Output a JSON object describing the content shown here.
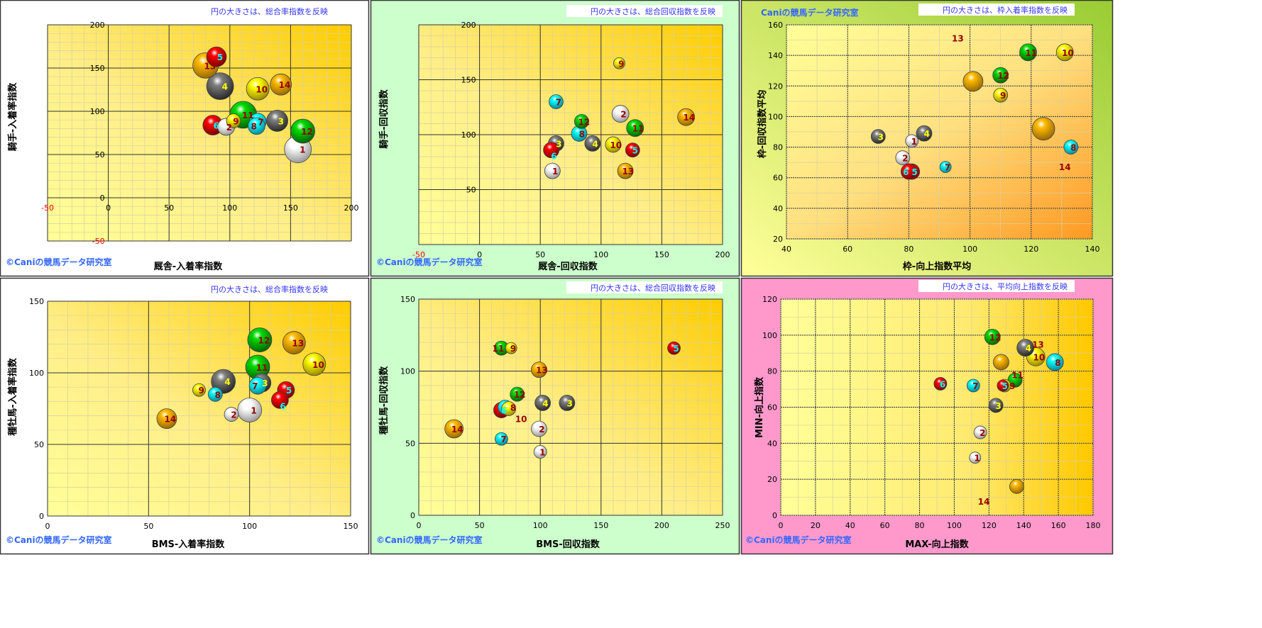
{
  "horse_colors": {
    "1": {
      "fill": "#ffffff",
      "label": "#990000"
    },
    "2": {
      "fill": "#ffffff",
      "label": "#990000"
    },
    "3": {
      "fill": "#808080",
      "label": "#ffff00"
    },
    "4": {
      "fill": "#808080",
      "label": "#ffff00"
    },
    "5": {
      "fill": "#ff0000",
      "label": "#00ffff"
    },
    "6": {
      "fill": "#ff0000",
      "label": "#00ffff"
    },
    "7": {
      "fill": "#00ffff",
      "label": "#990000"
    },
    "8": {
      "fill": "#00ffff",
      "label": "#990000"
    },
    "9": {
      "fill": "#ffff00",
      "label": "#990000"
    },
    "10": {
      "fill": "#ffff00",
      "label": "#990000"
    },
    "11": {
      "fill": "#00dd00",
      "label": "#990000"
    },
    "12": {
      "fill": "#00dd00",
      "label": "#990000"
    },
    "13": {
      "fill": "#ffbb00",
      "label": "#990000"
    },
    "14": {
      "fill": "#ffbb00",
      "label": "#990000"
    }
  },
  "chart_data": [
    {
      "type": "scatter",
      "subtype": "bubble",
      "note": "円の大きさは、総合率指数を反映",
      "xlabel": "厩舎-入着率指数",
      "ylabel": "騎手-入着率指数",
      "copyright": "©Caniの競馬データ研究室",
      "panel_color": "#ffffff",
      "xlim": [
        -50,
        200
      ],
      "ylim": [
        -50,
        200
      ],
      "xstep": 50,
      "ystep": 50,
      "points": [
        {
          "n": "1",
          "x": 156,
          "y": 56,
          "size": 19
        },
        {
          "n": "2",
          "x": 97,
          "y": 82,
          "size": 12
        },
        {
          "n": "3",
          "x": 139,
          "y": 89,
          "size": 15
        },
        {
          "n": "4",
          "x": 92,
          "y": 129,
          "size": 19
        },
        {
          "n": "5",
          "x": 89,
          "y": 163,
          "size": 14
        },
        {
          "n": "6",
          "x": 86,
          "y": 84,
          "size": 14
        },
        {
          "n": "7",
          "x": 123,
          "y": 88,
          "size": 12
        },
        {
          "n": "8",
          "x": 122,
          "y": 83,
          "size": 12
        },
        {
          "n": "9",
          "x": 103,
          "y": 89,
          "size": 10
        },
        {
          "n": "10",
          "x": 123,
          "y": 126,
          "size": 16
        },
        {
          "n": "11",
          "x": 111,
          "y": 96,
          "size": 19
        },
        {
          "n": "12",
          "x": 160,
          "y": 77,
          "size": 17
        },
        {
          "n": "13",
          "x": 80,
          "y": 153,
          "size": 18
        },
        {
          "n": "14",
          "x": 142,
          "y": 131,
          "size": 15
        }
      ]
    },
    {
      "type": "scatter",
      "subtype": "bubble",
      "note": "円の大きさは、総合回収指数を反映",
      "xlabel": "厩舎-回収指数",
      "ylabel": "騎手-回収指数",
      "copyright": "©Caniの競馬データ研究室",
      "panel_color": "#ccffcc",
      "xlim": [
        -50,
        200
      ],
      "ylim": [
        0,
        200
      ],
      "xstep": 50,
      "ystep": 50,
      "points": [
        {
          "n": "1",
          "x": 60,
          "y": 67,
          "size": 11
        },
        {
          "n": "2",
          "x": 116,
          "y": 119,
          "size": 12
        },
        {
          "n": "3",
          "x": 63,
          "y": 92,
          "size": 11
        },
        {
          "n": "4",
          "x": 93,
          "y": 92,
          "size": 11
        },
        {
          "n": "5",
          "x": 126,
          "y": 86,
          "size": 10
        },
        {
          "n": "6",
          "x": 59,
          "y": 86,
          "size": 11
        },
        {
          "n": "7",
          "x": 63,
          "y": 130,
          "size": 10
        },
        {
          "n": "8",
          "x": 82,
          "y": 101,
          "size": 11
        },
        {
          "n": "9",
          "x": 115,
          "y": 165,
          "size": 8
        },
        {
          "n": "10",
          "x": 110,
          "y": 91,
          "size": 11
        },
        {
          "n": "11",
          "x": 128,
          "y": 106,
          "size": 12
        },
        {
          "n": "12",
          "x": 84,
          "y": 112,
          "size": 10
        },
        {
          "n": "13",
          "x": 120,
          "y": 67,
          "size": 11
        },
        {
          "n": "14",
          "x": 170,
          "y": 116,
          "size": 12
        }
      ]
    },
    {
      "type": "scatter",
      "subtype": "bubble",
      "note": "円の大きさは、枠入着率指数を反映",
      "xlabel": "枠-向上指数平均",
      "ylabel": "枠-回収指数平均",
      "copyright": "Caniの競馬データ研究室",
      "panel_color": "#99cc33",
      "xlim": [
        40,
        140
      ],
      "ylim": [
        20,
        160
      ],
      "xstep": 20,
      "ystep": 20,
      "points": [
        {
          "n": "1",
          "x": 81,
          "y": 84,
          "size": 9
        },
        {
          "n": "2",
          "x": 78,
          "y": 73,
          "size": 10
        },
        {
          "n": "3",
          "x": 70,
          "y": 87,
          "size": 10
        },
        {
          "n": "4",
          "x": 85,
          "y": 89,
          "size": 11
        },
        {
          "n": "5",
          "x": 81,
          "y": 64,
          "size": 11
        },
        {
          "n": "6",
          "x": 80,
          "y": 64,
          "size": 11
        },
        {
          "n": "7",
          "x": 92,
          "y": 67,
          "size": 8
        },
        {
          "n": "8",
          "x": 133,
          "y": 80,
          "size": 10
        },
        {
          "n": "9",
          "x": 110,
          "y": 114,
          "size": 10
        },
        {
          "n": "10",
          "x": 131,
          "y": 142,
          "size": 12
        },
        {
          "n": "11",
          "x": 119,
          "y": 142,
          "size": 12
        },
        {
          "n": "12",
          "x": 110,
          "y": 127,
          "size": 11
        },
        {
          "n": "13",
          "x": 101,
          "y": 123,
          "size": 14,
          "label_at": [
            96,
            149
          ]
        },
        {
          "n": "14",
          "x": 124,
          "y": 92,
          "size": 16,
          "label_at": [
            131,
            65
          ]
        }
      ]
    },
    {
      "type": "scatter",
      "subtype": "bubble",
      "note": "円の大きさは、総合率指数を反映",
      "xlabel": "BMS-入着率指数",
      "ylabel": "種牡馬-入着率指数",
      "copyright": "©Caniの競馬データ研究室",
      "panel_color": "#ffffff",
      "xlim": [
        0,
        150
      ],
      "ylim": [
        0,
        150
      ],
      "xstep": 50,
      "ystep": 50,
      "points": [
        {
          "n": "1",
          "x": 100,
          "y": 74,
          "size": 17
        },
        {
          "n": "2",
          "x": 91,
          "y": 71,
          "size": 10
        },
        {
          "n": "3",
          "x": 106,
          "y": 93,
          "size": 13
        },
        {
          "n": "4",
          "x": 87,
          "y": 94,
          "size": 17
        },
        {
          "n": "5",
          "x": 118,
          "y": 88,
          "size": 12
        },
        {
          "n": "6",
          "x": 115,
          "y": 81,
          "size": 12
        },
        {
          "n": "7",
          "x": 104,
          "y": 91,
          "size": 12
        },
        {
          "n": "8",
          "x": 83,
          "y": 85,
          "size": 10
        },
        {
          "n": "9",
          "x": 75,
          "y": 88,
          "size": 9
        },
        {
          "n": "10",
          "x": 132,
          "y": 106,
          "size": 16
        },
        {
          "n": "11",
          "x": 104,
          "y": 104,
          "size": 17
        },
        {
          "n": "12",
          "x": 105,
          "y": 123,
          "size": 17
        },
        {
          "n": "13",
          "x": 122,
          "y": 121,
          "size": 16
        },
        {
          "n": "14",
          "x": 59,
          "y": 68,
          "size": 14
        }
      ]
    },
    {
      "type": "scatter",
      "subtype": "bubble",
      "note": "円の大きさは、総合回収指数を反映",
      "xlabel": "BMS-回収指数",
      "ylabel": "種牡馬-回収指数",
      "copyright": "©Caniの競馬データ研究室",
      "panel_color": "#ccffcc",
      "xlim": [
        0,
        250
      ],
      "ylim": [
        0,
        150
      ],
      "xstep": 50,
      "ystep": 50,
      "points": [
        {
          "n": "1",
          "x": 100,
          "y": 44,
          "size": 9
        },
        {
          "n": "2",
          "x": 99,
          "y": 60,
          "size": 11
        },
        {
          "n": "3",
          "x": 122,
          "y": 78,
          "size": 11
        },
        {
          "n": "4",
          "x": 102,
          "y": 78,
          "size": 11
        },
        {
          "n": "5",
          "x": 210,
          "y": 116,
          "size": 9
        },
        {
          "n": "6",
          "x": 68,
          "y": 73,
          "size": 11
        },
        {
          "n": "7",
          "x": 68,
          "y": 53,
          "size": 9
        },
        {
          "n": "8",
          "x": 71,
          "y": 75,
          "size": 10
        },
        {
          "n": "9",
          "x": 76,
          "y": 116,
          "size": 8
        },
        {
          "n": "10",
          "x": 74,
          "y": 74,
          "size": 10
        },
        {
          "n": "11",
          "x": 68,
          "y": 116,
          "size": 10
        },
        {
          "n": "12",
          "x": 81,
          "y": 84,
          "size": 10
        },
        {
          "n": "13",
          "x": 99,
          "y": 101,
          "size": 11
        },
        {
          "n": "14",
          "x": 29,
          "y": 60,
          "size": 13
        }
      ]
    },
    {
      "type": "scatter",
      "subtype": "bubble",
      "note": "円の大きさは、平均向上指数を反映",
      "xlabel": "MAX-向上指数",
      "ylabel": "MIN-向上指数",
      "copyright": "©Caniの競馬データ研究室",
      "panel_color": "#ff99cc",
      "xlim": [
        0,
        180
      ],
      "ylim": [
        0,
        120
      ],
      "xstep": 20,
      "ystep": 20,
      "points": [
        {
          "n": "1",
          "x": 112,
          "y": 32,
          "size": 8
        },
        {
          "n": "2",
          "x": 115,
          "y": 46,
          "size": 9
        },
        {
          "n": "3",
          "x": 124,
          "y": 61,
          "size": 10
        },
        {
          "n": "4",
          "x": 141,
          "y": 93,
          "size": 12
        },
        {
          "n": "5",
          "x": 128,
          "y": 72,
          "size": 8
        },
        {
          "n": "6",
          "x": 92,
          "y": 73,
          "size": 9
        },
        {
          "n": "7",
          "x": 111,
          "y": 72,
          "size": 9
        },
        {
          "n": "8",
          "x": 158,
          "y": 85,
          "size": 12
        },
        {
          "n": "9",
          "x": 129,
          "y": 72,
          "size": 9
        },
        {
          "n": "10",
          "x": 147,
          "y": 88,
          "size": 13
        },
        {
          "n": "11",
          "x": 135,
          "y": 75,
          "size": 10
        },
        {
          "n": "12",
          "x": 122,
          "y": 99,
          "size": 11
        },
        {
          "n": "13",
          "x": 127,
          "y": 85,
          "size": 11,
          "label_at": [
            145,
            93
          ]
        },
        {
          "n": "14",
          "x": 136,
          "y": 16,
          "size": 10,
          "label_at": [
            117,
            6
          ]
        }
      ]
    }
  ]
}
